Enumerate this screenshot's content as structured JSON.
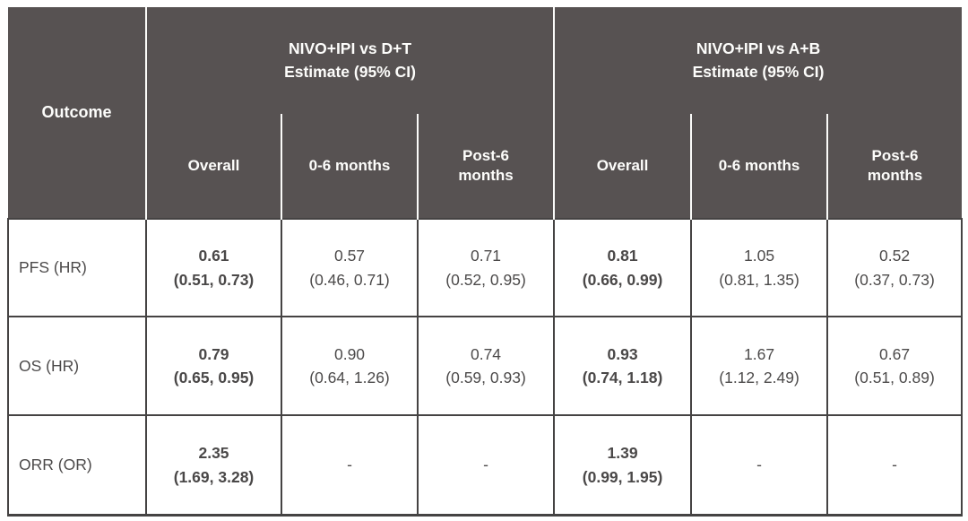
{
  "colors": {
    "header_bg": "#575252",
    "header_text": "#ffffff",
    "body_text": "#4c4a4a",
    "body_border": "#454343",
    "header_divider": "#fbfbf9"
  },
  "header": {
    "outcome_label": "Outcome",
    "groups": [
      {
        "title_line1": "NIVO+IPI vs D+T",
        "title_line2": "Estimate (95% CI)",
        "subcolumns": [
          "Overall",
          "0-6 months",
          "Post-6 months"
        ]
      },
      {
        "title_line1": "NIVO+IPI vs A+B",
        "title_line2": "Estimate (95% CI)",
        "subcolumns": [
          "Overall",
          "0-6 months",
          "Post-6 months"
        ]
      }
    ]
  },
  "rows": [
    {
      "outcome": "PFS (HR)",
      "cells": [
        {
          "estimate": "0.61",
          "ci": "(0.51, 0.73)"
        },
        {
          "estimate": "0.57",
          "ci": "(0.46, 0.71)"
        },
        {
          "estimate": "0.71",
          "ci": "(0.52, 0.95)"
        },
        {
          "estimate": "0.81",
          "ci": "(0.66, 0.99)"
        },
        {
          "estimate": "1.05",
          "ci": "(0.81, 1.35)"
        },
        {
          "estimate": "0.52",
          "ci": "(0.37, 0.73)"
        }
      ]
    },
    {
      "outcome": "OS (HR)",
      "cells": [
        {
          "estimate": "0.79",
          "ci": "(0.65, 0.95)"
        },
        {
          "estimate": "0.90",
          "ci": "(0.64, 1.26)"
        },
        {
          "estimate": "0.74",
          "ci": "(0.59, 0.93)"
        },
        {
          "estimate": "0.93",
          "ci": "(0.74, 1.18)"
        },
        {
          "estimate": "1.67",
          "ci": "(1.12, 2.49)"
        },
        {
          "estimate": "0.67",
          "ci": "(0.51, 0.89)"
        }
      ]
    },
    {
      "outcome": "ORR (OR)",
      "cells": [
        {
          "estimate": "2.35",
          "ci": "(1.69, 3.28)"
        },
        {
          "estimate": "-",
          "ci": ""
        },
        {
          "estimate": "-",
          "ci": ""
        },
        {
          "estimate": "1.39",
          "ci": "(0.99, 1.95)"
        },
        {
          "estimate": "-",
          "ci": ""
        },
        {
          "estimate": "-",
          "ci": ""
        }
      ]
    }
  ]
}
